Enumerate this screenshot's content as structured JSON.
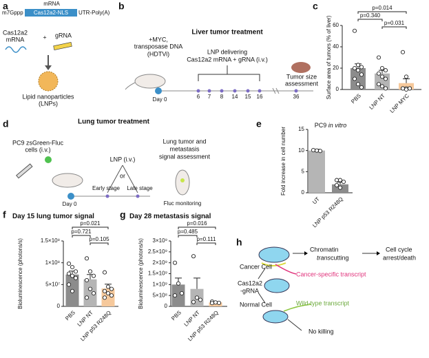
{
  "panels": {
    "a": {
      "letter": "a",
      "mrna": "mRNA",
      "cap": "m7Gppp",
      "cds": "Cas12a2-NLS",
      "utr": "UTR-Poly(A)",
      "cas_mrna": [
        "Cas12a2",
        "mRNA"
      ],
      "plus": "+",
      "grna": "gRNA",
      "lnp": [
        "Lipid nanoparticles",
        "(LNPs)"
      ]
    },
    "b": {
      "letter": "b",
      "title": "Liver tumor treatment",
      "injection": [
        "+MYC,",
        "transposase DNA",
        "(HDTVi)"
      ],
      "day0": "Day 0",
      "lnp": [
        "LNP delivering",
        "Cas12a2 mRNA + gRNA (i.v.)"
      ],
      "days": [
        6,
        7,
        8,
        14,
        15,
        16,
        36
      ],
      "assess": [
        "Tumor size",
        "assessment"
      ]
    },
    "c": {
      "letter": "c"
    },
    "d": {
      "letter": "d",
      "title": "Lung tumor treatment",
      "cells": [
        "PC9 zsGreen-Fluc",
        "cells (i.v.)"
      ],
      "lnp": "LNP (i.v.)",
      "or": "or",
      "early": "Early stage",
      "late": "Late stage",
      "day0": "Day 0",
      "assess": [
        "Lung tumor and",
        "metastasis",
        "signal assessment"
      ],
      "monitor": "Fluc monitoring"
    },
    "e": {
      "letter": "e"
    },
    "f": {
      "letter": "f"
    },
    "g": {
      "letter": "g"
    },
    "h": {
      "letter": "h",
      "cancer": "Cancer Cell",
      "cas": [
        "Cas12a2",
        "-gRNA"
      ],
      "normal": "Normal Cell",
      "chromatin": "Chromatin",
      "trans": "trans",
      "cutting": "cutting",
      "outcome": [
        "Cell cycle",
        "arrest/death"
      ],
      "cancer_tx": "Cancer-specific transcript",
      "wt_tx": "Wild-type transcript",
      "nokill": "No killing"
    }
  },
  "chart_data": [
    {
      "type": "bar",
      "ylabel": "Surface area of tumors (% of liver)",
      "categories": [
        "PBS",
        "LNP NT",
        "LNP MYC"
      ],
      "colors": [
        "#8c8c8c",
        "#b5b5b5",
        "#f6c99c"
      ],
      "values": [
        20,
        15,
        6
      ],
      "errors": [
        4,
        3,
        4
      ],
      "points": [
        [
          55,
          23,
          21,
          20,
          18,
          14,
          10,
          5,
          2
        ],
        [
          30,
          20,
          18,
          15,
          12,
          10,
          5,
          3,
          1
        ],
        [
          35,
          12,
          1,
          1,
          1,
          1,
          1,
          0
        ]
      ],
      "ylim": [
        0,
        60
      ],
      "yticks": [
        0,
        20,
        40,
        60
      ],
      "pvalues": [
        "p=0.014",
        "p=0.340",
        "p=0.031"
      ]
    },
    {
      "type": "bar",
      "title": "PC9",
      "title_italic": "in vitro",
      "ylabel": "Fold increase in cell number",
      "categories": [
        "UT",
        "LNP p53 R248Q"
      ],
      "colors": [
        "#b5b5b5",
        "#8c8c8c"
      ],
      "values": [
        10,
        2
      ],
      "errors": [
        0.3,
        0.5
      ],
      "points": [
        [
          10.1,
          10,
          9.9
        ],
        [
          3,
          3,
          2.6,
          1.8,
          1.2
        ]
      ],
      "ylim": [
        0,
        15
      ],
      "yticks": [
        0,
        5,
        10,
        15
      ]
    },
    {
      "type": "bar",
      "title": "Day 15 lung tumor signal",
      "ylabel": "Bioluminescence (photons/s)",
      "categories": [
        "PBS",
        "LNP NT",
        "LNP p53 R248Q"
      ],
      "colors": [
        "#8c8c8c",
        "#b5b5b5",
        "#f6c99c"
      ],
      "values": [
        73000000,
        62000000,
        41000000
      ],
      "errors": [
        8000000,
        11000000,
        10000000
      ],
      "points": [
        [
          98000000,
          90000000,
          80000000,
          75000000,
          70000000,
          65000000,
          50000000,
          35000000
        ],
        [
          110000000,
          80000000,
          70000000,
          60000000,
          40000000,
          30000000,
          20000000
        ],
        [
          78000000,
          45000000,
          40000000,
          35000000,
          30000000,
          25000000,
          20000000
        ]
      ],
      "ylim": [
        0,
        150000000
      ],
      "yticks": [
        0,
        {
          "value": 50000000,
          "label": "5×10⁷"
        },
        {
          "value": 100000000,
          "label": "1×10⁸"
        },
        {
          "value": 150000000,
          "label": "1.5×10⁸"
        }
      ],
      "pvalues": [
        "p=0.021",
        "p=0.721",
        "p=0.105"
      ]
    },
    {
      "type": "bar",
      "title": "Day 28 metastasis signal",
      "ylabel": "Bioluminescence (photons/s)",
      "categories": [
        "PBS",
        "LNP NT",
        "LNP p53 R248Q"
      ],
      "colors": [
        "#8c8c8c",
        "#b5b5b5",
        "#f6c99c"
      ],
      "values": [
        1000000000,
        800000000,
        180000000
      ],
      "errors": [
        300000000,
        500000000,
        30000000
      ],
      "points": [
        [
          2000000000,
          1050000000,
          600000000,
          500000000
        ],
        [
          2300000000,
          400000000,
          300000000,
          200000000
        ],
        [
          220000000,
          180000000,
          160000000,
          150000000
        ]
      ],
      "ylim": [
        0,
        3000000000
      ],
      "yticks": [
        0,
        {
          "value": 500000000,
          "label": "5×10⁸"
        },
        {
          "value": 1000000000,
          "label": "1×10⁹"
        },
        {
          "value": 1500000000,
          "label": "1.5×10⁹"
        },
        {
          "value": 2000000000,
          "label": "2×10⁹"
        },
        {
          "value": 2500000000,
          "label": "2.5×10⁹"
        },
        {
          "value": 3000000000,
          "label": "3×10⁹"
        }
      ],
      "pvalues": [
        "p=0.016",
        "p=0.485",
        "p=0.111"
      ]
    }
  ]
}
